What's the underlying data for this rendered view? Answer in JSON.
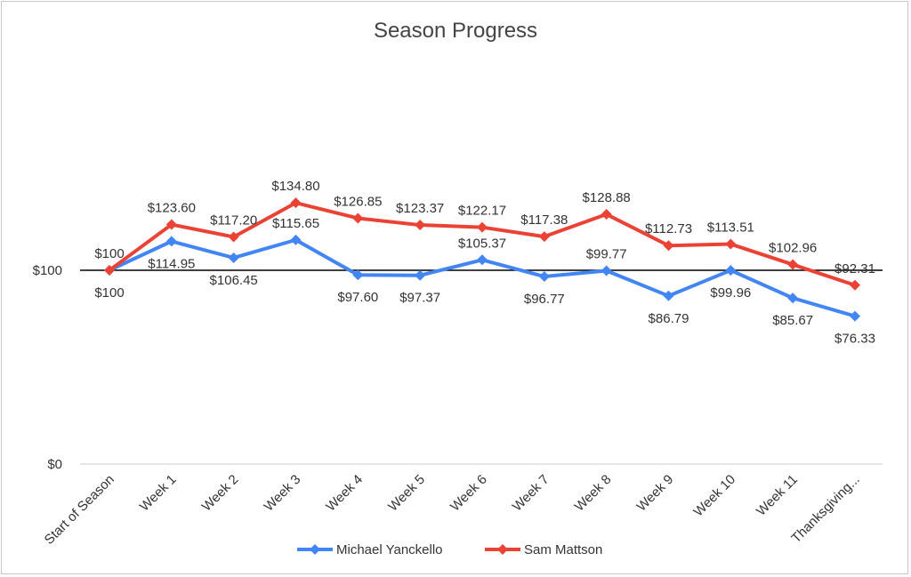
{
  "chart_data": {
    "type": "line",
    "title": "Season Progress",
    "xlabel": "",
    "ylabel": "",
    "categories": [
      "Start of Season",
      "Week 1",
      "Week 2",
      "Week 3",
      "Week 4",
      "Week 5",
      "Week 6",
      "Week 7",
      "Week 8",
      "Week 9",
      "Week 10",
      "Week 11",
      "Thanksgiving..."
    ],
    "yticks": [
      {
        "value": 0,
        "label": "$0"
      },
      {
        "value": 100,
        "label": "$100"
      }
    ],
    "ylim": [
      0,
      200
    ],
    "grid": false,
    "legend_position": "bottom",
    "series": [
      {
        "name": "Michael Yanckello",
        "color": "#4285f4",
        "values": [
          100,
          114.95,
          106.45,
          115.65,
          97.6,
          97.37,
          105.37,
          96.77,
          99.77,
          86.79,
          99.96,
          85.67,
          76.33
        ],
        "labels": [
          "$100",
          "$114.95",
          "$106.45",
          "$115.65",
          "$97.60",
          "$97.37",
          "$105.37",
          "$96.77",
          "$99.77",
          "$86.79",
          "$99.96",
          "$85.67",
          "$76.33"
        ],
        "label_pos": [
          "below",
          "below",
          "below",
          "above",
          "below",
          "below",
          "above",
          "below",
          "above",
          "below",
          "below",
          "below",
          "below"
        ]
      },
      {
        "name": "Sam Mattson",
        "color": "#ea4335",
        "values": [
          100,
          123.6,
          117.2,
          134.8,
          126.85,
          123.37,
          122.17,
          117.38,
          128.88,
          112.73,
          113.51,
          102.96,
          92.31
        ],
        "labels": [
          "$100",
          "$123.60",
          "$117.20",
          "$134.80",
          "$126.85",
          "$123.37",
          "$122.17",
          "$117.38",
          "$128.88",
          "$112.73",
          "$113.51",
          "$102.96",
          "$92.31"
        ],
        "label_pos": [
          "above",
          "above",
          "above",
          "above",
          "above",
          "above",
          "above",
          "above",
          "above",
          "above",
          "above",
          "above",
          "above"
        ]
      }
    ]
  }
}
